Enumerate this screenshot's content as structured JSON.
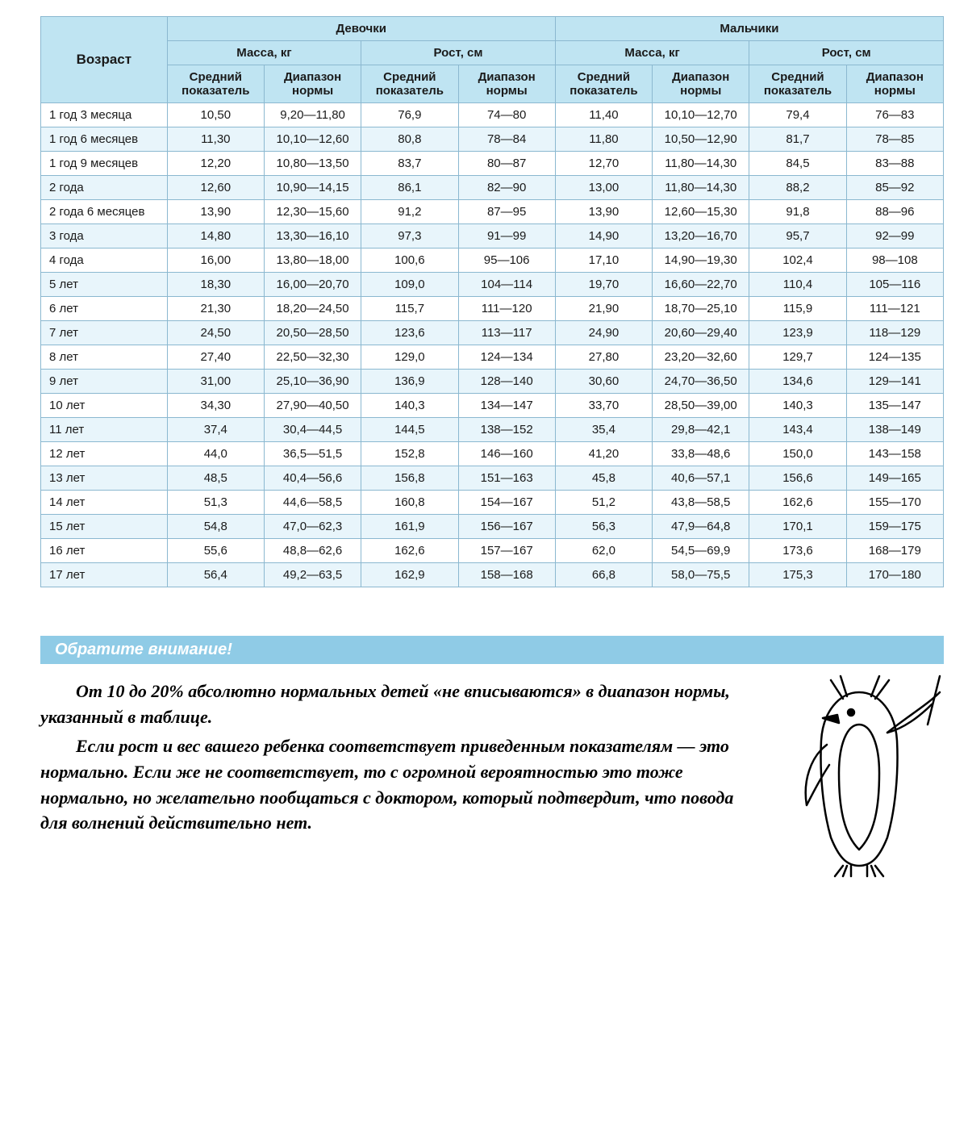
{
  "table": {
    "headers": {
      "age": "Возраст",
      "girls": "Девочки",
      "boys": "Мальчики",
      "mass": "Масса, кг",
      "height": "Рост, см",
      "avg": "Средний показатель",
      "range": "Диапазон нормы"
    },
    "columns": [
      "age",
      "g_mass_avg",
      "g_mass_range",
      "g_h_avg",
      "g_h_range",
      "b_mass_avg",
      "b_mass_range",
      "b_h_avg",
      "b_h_range"
    ],
    "rows": [
      [
        "1 год 3 месяца",
        "10,50",
        "9,20—11,80",
        "76,9",
        "74—80",
        "11,40",
        "10,10—12,70",
        "79,4",
        "76—83"
      ],
      [
        "1 год 6 месяцев",
        "11,30",
        "10,10—12,60",
        "80,8",
        "78—84",
        "11,80",
        "10,50—12,90",
        "81,7",
        "78—85"
      ],
      [
        "1 год 9 месяцев",
        "12,20",
        "10,80—13,50",
        "83,7",
        "80—87",
        "12,70",
        "11,80—14,30",
        "84,5",
        "83—88"
      ],
      [
        "2 года",
        "12,60",
        "10,90—14,15",
        "86,1",
        "82—90",
        "13,00",
        "11,80—14,30",
        "88,2",
        "85—92"
      ],
      [
        "2 года 6 месяцев",
        "13,90",
        "12,30—15,60",
        "91,2",
        "87—95",
        "13,90",
        "12,60—15,30",
        "91,8",
        "88—96"
      ],
      [
        "3 года",
        "14,80",
        "13,30—16,10",
        "97,3",
        "91—99",
        "14,90",
        "13,20—16,70",
        "95,7",
        "92—99"
      ],
      [
        "4 года",
        "16,00",
        "13,80—18,00",
        "100,6",
        "95—106",
        "17,10",
        "14,90—19,30",
        "102,4",
        "98—108"
      ],
      [
        "5 лет",
        "18,30",
        "16,00—20,70",
        "109,0",
        "104—114",
        "19,70",
        "16,60—22,70",
        "110,4",
        "105—116"
      ],
      [
        "6 лет",
        "21,30",
        "18,20—24,50",
        "115,7",
        "111—120",
        "21,90",
        "18,70—25,10",
        "115,9",
        "111—121"
      ],
      [
        "7 лет",
        "24,50",
        "20,50—28,50",
        "123,6",
        "113—117",
        "24,90",
        "20,60—29,40",
        "123,9",
        "118—129"
      ],
      [
        "8 лет",
        "27,40",
        "22,50—32,30",
        "129,0",
        "124—134",
        "27,80",
        "23,20—32,60",
        "129,7",
        "124—135"
      ],
      [
        "9 лет",
        "31,00",
        "25,10—36,90",
        "136,9",
        "128—140",
        "30,60",
        "24,70—36,50",
        "134,6",
        "129—141"
      ],
      [
        "10 лет",
        "34,30",
        "27,90—40,50",
        "140,3",
        "134—147",
        "33,70",
        "28,50—39,00",
        "140,3",
        "135—147"
      ],
      [
        "11 лет",
        "37,4",
        "30,4—44,5",
        "144,5",
        "138—152",
        "35,4",
        "29,8—42,1",
        "143,4",
        "138—149"
      ],
      [
        "12 лет",
        "44,0",
        "36,5—51,5",
        "152,8",
        "146—160",
        "41,20",
        "33,8—48,6",
        "150,0",
        "143—158"
      ],
      [
        "13 лет",
        "48,5",
        "40,4—56,6",
        "156,8",
        "151—163",
        "45,8",
        "40,6—57,1",
        "156,6",
        "149—165"
      ],
      [
        "14 лет",
        "51,3",
        "44,6—58,5",
        "160,8",
        "154—167",
        "51,2",
        "43,8—58,5",
        "162,6",
        "155—170"
      ],
      [
        "15 лет",
        "54,8",
        "47,0—62,3",
        "161,9",
        "156—167",
        "56,3",
        "47,9—64,8",
        "170,1",
        "159—175"
      ],
      [
        "16 лет",
        "55,6",
        "48,8—62,6",
        "162,6",
        "157—167",
        "62,0",
        "54,5—69,9",
        "173,6",
        "168—179"
      ],
      [
        "17 лет",
        "56,4",
        "49,2—63,5",
        "162,9",
        "158—168",
        "66,8",
        "58,0—75,5",
        "175,3",
        "170—180"
      ]
    ],
    "header_bg": "#bfe4f2",
    "row_alt_bg": "#e8f5fb",
    "border_color": "#8bb8d0"
  },
  "note": {
    "title": "Обратите внимание!",
    "p1": "От 10 до 20% абсолютно нормальных детей «не вписываются» в диапазон нормы, указанный в таблице.",
    "p2": "Если рост и вес вашего ребенка соответствует приведенным показателям — это нормально. Если же не соответствует, то с огромной вероятностью это тоже нормально, но желательно пообщаться с доктором, который подтвердит, что повода для волнений действительно нет.",
    "title_bg": "#8fcbe6",
    "title_color": "#ffffff"
  }
}
